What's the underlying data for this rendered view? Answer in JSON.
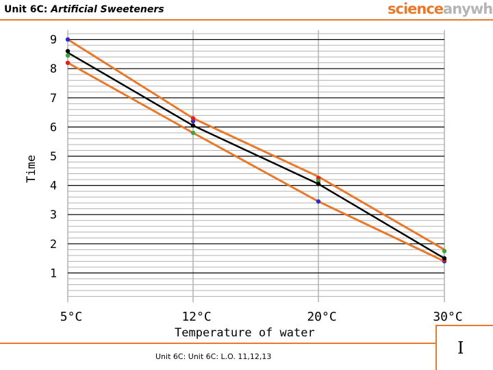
{
  "header": {
    "title_prefix": "Unit 6C: ",
    "title_topic": "Artificial Sweeteners",
    "brand_part1": "science",
    "brand_part2": "anywhere"
  },
  "footer": {
    "text": "Unit 6C: Unit 6C: L.O. 11,12,13",
    "mark": "I"
  },
  "colors": {
    "accent": "#e8782a",
    "best_fit": "#000000",
    "point_blue": "#2b2bcf",
    "point_red": "#e02020",
    "point_green": "#3aa53a",
    "grid_major": "#000000",
    "grid_minor": "#b0b0b0"
  },
  "chart_data": {
    "type": "line",
    "xlabel": "Temperature of water",
    "ylabel": "Time",
    "categories": [
      "5°C",
      "12°C",
      "20°C",
      "30°C"
    ],
    "y_ticks": [
      "1",
      "2",
      "3",
      "4",
      "5",
      "6",
      "7",
      "8",
      "9"
    ],
    "ylim": [
      0,
      9
    ],
    "grid": true,
    "lines": [
      {
        "color": "#e8782a",
        "values": [
          9.0,
          6.3,
          4.3,
          1.8
        ]
      },
      {
        "color": "#000000",
        "values": [
          8.55,
          6.05,
          4.05,
          1.5
        ]
      },
      {
        "color": "#e8782a",
        "values": [
          8.2,
          5.8,
          3.45,
          1.4
        ]
      }
    ],
    "points": [
      {
        "color": "#2b2bcf",
        "values": [
          9.0,
          6.2,
          3.45,
          1.4
        ]
      },
      {
        "color": "#e02020",
        "values": [
          8.2,
          6.3,
          4.25,
          1.45
        ]
      },
      {
        "color": "#3aa53a",
        "values": [
          8.45,
          5.8,
          4.15,
          1.75
        ]
      },
      {
        "color": "#000000",
        "values": [
          8.6,
          6.05,
          4.05,
          1.5
        ]
      }
    ]
  }
}
